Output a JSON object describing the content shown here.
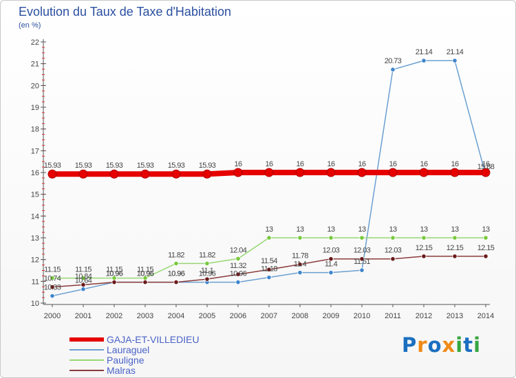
{
  "title": "Evolution du Taux de Taxe d'Habitation",
  "subtitle": "(en %)",
  "logo": {
    "letters": [
      {
        "ch": "P",
        "color": "#1a6fc0"
      },
      {
        "ch": "r",
        "color": "#f08a16"
      },
      {
        "ch": "o",
        "color": "#1a6fc0"
      },
      {
        "ch": "x",
        "color": "#f08a16"
      },
      {
        "ch": "i",
        "color": "#36a640"
      },
      {
        "ch": "t",
        "color": "#1a6fc0"
      },
      {
        "ch": "i",
        "color": "#36a640"
      }
    ]
  },
  "chart_data": {
    "type": "line",
    "title": "Evolution du Taux de Taxe d'Habitation",
    "ylabel": "(en %)",
    "xlabel": "",
    "x": [
      "2000",
      "2001",
      "2002",
      "2003",
      "2004",
      "2005",
      "2006",
      "2007",
      "2008",
      "2009",
      "2010",
      "2011",
      "2012",
      "2013",
      "2014"
    ],
    "ylim": [
      10,
      22
    ],
    "yticks": [
      "10",
      "11",
      "12",
      "13",
      "14",
      "15",
      "16",
      "17",
      "18",
      "19",
      "20",
      "21",
      "22"
    ],
    "grid": false,
    "legend": "bottom-left",
    "series": [
      {
        "name": "GAJA-ET-VILLEDIEU",
        "color": "#e60000",
        "marker_color": "#e60000",
        "width": 8,
        "marker_r": 6,
        "values": [
          15.93,
          15.93,
          15.93,
          15.93,
          15.93,
          15.93,
          16,
          16,
          16,
          16,
          16,
          16,
          16,
          16,
          16
        ],
        "labels": [
          "15.93",
          "15.93",
          "15.93",
          "15.93",
          "15.93",
          "15.93",
          "16",
          "16",
          "16",
          "16",
          "16",
          "16",
          "16",
          "16",
          "16"
        ]
      },
      {
        "name": "Lauraguel",
        "color": "#6a9fd0",
        "marker_color": "#3f86cc",
        "width": 1.5,
        "marker_r": 3.2,
        "values": [
          10.33,
          10.64,
          10.96,
          10.96,
          10.96,
          10.96,
          10.96,
          11.18,
          11.4,
          11.4,
          11.51,
          20.73,
          21.14,
          21.14,
          15.88
        ],
        "labels": [
          "10.33",
          "10.64",
          "10.96",
          "10.96",
          "10.96",
          "10.96",
          "10.96",
          "11.18",
          "11.4",
          "11.4",
          "11.51",
          "20.73",
          "21.14",
          "21.14",
          "15.88"
        ]
      },
      {
        "name": "Pauligne",
        "color": "#96d873",
        "marker_color": "#78c83c",
        "width": 1.5,
        "marker_r": 3.2,
        "values": [
          11.15,
          11.15,
          11.15,
          11.15,
          11.82,
          11.82,
          12.04,
          13,
          13,
          13,
          13,
          13,
          13,
          13,
          13
        ],
        "labels": [
          "11.15",
          "11.15",
          "11.15",
          "11.15",
          "11.82",
          "11.82",
          "12.04",
          "13",
          "13",
          "13",
          "13",
          "13",
          "13",
          "13",
          "13"
        ]
      },
      {
        "name": "Malras",
        "color": "#8a3a3a",
        "marker_color": "#6a1a1a",
        "width": 1.5,
        "marker_r": 3.2,
        "values": [
          10.74,
          10.84,
          10.96,
          10.96,
          10.96,
          11.1,
          11.32,
          11.54,
          11.78,
          12.03,
          12.03,
          12.03,
          12.15,
          12.15,
          12.15
        ],
        "labels": [
          "10.74",
          "10.84",
          "10.96",
          "10.96",
          "10.96",
          "11.1",
          "11.32",
          "11.54",
          "11.78",
          "12.03",
          "12.03",
          "12.03",
          "12.15",
          "12.15",
          "12.15"
        ]
      }
    ]
  }
}
